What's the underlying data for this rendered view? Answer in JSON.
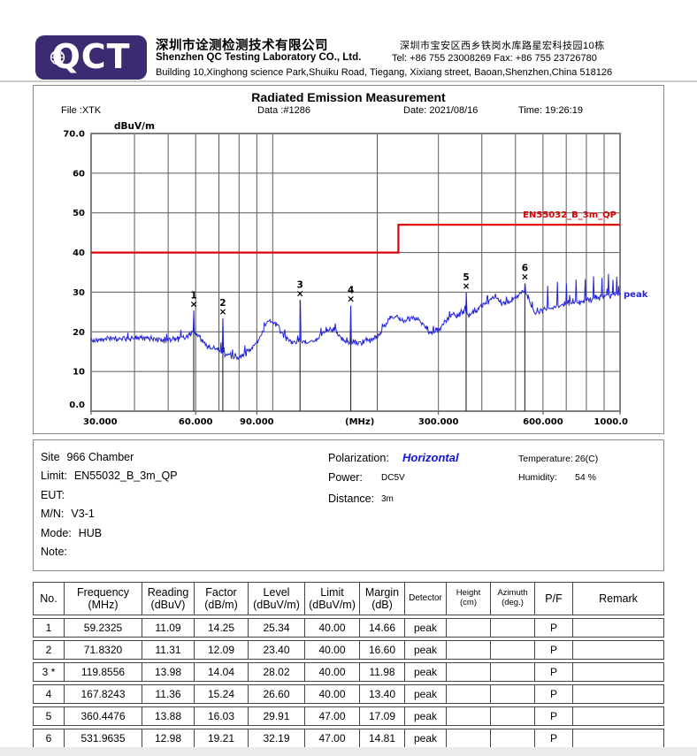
{
  "header": {
    "logo_text": "QCT",
    "company_cn": "深圳市诠测检测技术有限公司",
    "company_en": "Shenzhen QC Testing Laboratory CO., Ltd.",
    "address_cn": "深圳市宝安区西乡铁岗水库路星宏科技园10栋",
    "tel_fax": "Tel: +86 755 23008269   Fax: +86 755 23726780",
    "address_en": "Building 10,Xinghong science Park,Shuiku Road, Tiegang, Xixiang street, Baoan,Shenzhen,China 518126"
  },
  "chart": {
    "title": "Radiated Emission Measurement",
    "file": "File :XTK",
    "data": "Data :#1286",
    "date": "Date: 2021/08/16",
    "time": "Time: 19:26:19",
    "y_unit": "dBuV/m"
  },
  "chart_data": {
    "type": "line",
    "x_scale": "log",
    "x_range": [
      30,
      1000
    ],
    "y_range": [
      0,
      70
    ],
    "grid": {
      "freqs": [
        40,
        50,
        60,
        70,
        80,
        90,
        100,
        200,
        300,
        400,
        500,
        600,
        700,
        800,
        900
      ],
      "levels": [
        10,
        20,
        30,
        40,
        50,
        60
      ]
    },
    "y_ticks": [
      {
        "v": 70,
        "label": "70.0"
      },
      {
        "v": 60,
        "label": "60"
      },
      {
        "v": 50,
        "label": "50"
      },
      {
        "v": 40,
        "label": "40"
      },
      {
        "v": 30,
        "label": "30"
      },
      {
        "v": 20,
        "label": "20"
      },
      {
        "v": 10,
        "label": "10"
      },
      {
        "v": 0,
        "label": "0.0"
      }
    ],
    "x_ticks": [
      {
        "f": 30,
        "label": "30.000",
        "align": "start"
      },
      {
        "f": 60,
        "label": "60.000"
      },
      {
        "f": 90,
        "label": "90.000"
      },
      {
        "f": 178,
        "label": "(MHz)",
        "unit": true
      },
      {
        "f": 300,
        "label": "300.000"
      },
      {
        "f": 600,
        "label": "600.000"
      },
      {
        "f": 1000,
        "label": "1000.0",
        "align": "end"
      }
    ],
    "limit_line": {
      "label": "EN55032_B_3m_QP",
      "color": "#e00000",
      "points": [
        [
          30,
          40
        ],
        [
          230,
          40
        ],
        [
          230,
          47
        ],
        [
          1000,
          47
        ]
      ]
    },
    "trace": {
      "name": "peak",
      "color": "#2424d8",
      "end_level": 29.4,
      "noise_db": 0.95,
      "envelope": [
        [
          30,
          18
        ],
        [
          36,
          18.4
        ],
        [
          42,
          18.3
        ],
        [
          48,
          17.9
        ],
        [
          53,
          18.1
        ],
        [
          56,
          18.8
        ],
        [
          59,
          19.8
        ],
        [
          61,
          19.2
        ],
        [
          64,
          16.8
        ],
        [
          67,
          15.8
        ],
        [
          70,
          15.2
        ],
        [
          73,
          14.4
        ],
        [
          77,
          13.8
        ],
        [
          80,
          13.6
        ],
        [
          83,
          14.3
        ],
        [
          86,
          15.3
        ],
        [
          89,
          16.8
        ],
        [
          92,
          18.6
        ],
        [
          95,
          21.5
        ],
        [
          98,
          23
        ],
        [
          101,
          22.4
        ],
        [
          104,
          21.2
        ],
        [
          108,
          18.8
        ],
        [
          112,
          17.7
        ],
        [
          116,
          17.5
        ],
        [
          120,
          17.7
        ],
        [
          125,
          17.4
        ],
        [
          130,
          17.6
        ],
        [
          136,
          18.4
        ],
        [
          141,
          19.8
        ],
        [
          146,
          20.6
        ],
        [
          151,
          20.2
        ],
        [
          156,
          18.8
        ],
        [
          161,
          17.8
        ],
        [
          167,
          17.5
        ],
        [
          173,
          17.4
        ],
        [
          180,
          17.5
        ],
        [
          188,
          17.8
        ],
        [
          196,
          18.2
        ],
        [
          203,
          19.5
        ],
        [
          210,
          21.5
        ],
        [
          217,
          23.3
        ],
        [
          224,
          23.8
        ],
        [
          230,
          23.4
        ],
        [
          238,
          22.6
        ],
        [
          246,
          23.2
        ],
        [
          254,
          23.4
        ],
        [
          262,
          22.8
        ],
        [
          271,
          21.6
        ],
        [
          280,
          20
        ],
        [
          290,
          19.5
        ],
        [
          300,
          20.2
        ],
        [
          311,
          22
        ],
        [
          322,
          23.6
        ],
        [
          333,
          24.2
        ],
        [
          345,
          24.6
        ],
        [
          356,
          25.2
        ],
        [
          365,
          24.2
        ],
        [
          375,
          24.6
        ],
        [
          386,
          25.6
        ],
        [
          398,
          26.6
        ],
        [
          410,
          27.2
        ],
        [
          424,
          28.2
        ],
        [
          437,
          28.6
        ],
        [
          450,
          27.6
        ],
        [
          464,
          27.1
        ],
        [
          478,
          27.6
        ],
        [
          493,
          28.2
        ],
        [
          508,
          29.3
        ],
        [
          520,
          30.3
        ],
        [
          530,
          30
        ],
        [
          541,
          29.4
        ],
        [
          552,
          26.8
        ],
        [
          565,
          25
        ],
        [
          578,
          24.8
        ],
        [
          592,
          25.1
        ],
        [
          610,
          25.6
        ],
        [
          630,
          26
        ],
        [
          655,
          26.4
        ],
        [
          680,
          26.7
        ],
        [
          710,
          27
        ],
        [
          740,
          27.3
        ],
        [
          775,
          27.6
        ],
        [
          810,
          27.9
        ],
        [
          850,
          28.3
        ],
        [
          890,
          28.6
        ],
        [
          930,
          29
        ],
        [
          965,
          29.2
        ],
        [
          1000,
          29.4
        ]
      ],
      "spikes": [
        [
          59.2325,
          25.34
        ],
        [
          71.832,
          23.4
        ],
        [
          119.8556,
          28.02
        ],
        [
          167.8243,
          26.6
        ],
        [
          360.4476,
          29.91
        ],
        [
          531.9635,
          32.19
        ],
        [
          438,
          29.6
        ],
        [
          620,
          31.6
        ],
        [
          660,
          32.6
        ],
        [
          702,
          32.2
        ],
        [
          747,
          33.2
        ],
        [
          794,
          33.3
        ],
        [
          840,
          34.0
        ],
        [
          886,
          33.6
        ],
        [
          924,
          34.6
        ],
        [
          952,
          33.1
        ],
        [
          980,
          33.9
        ]
      ]
    },
    "markers": [
      {
        "n": "1",
        "freq": 59.2325,
        "level": 25.34
      },
      {
        "n": "2",
        "freq": 71.832,
        "level": 23.4
      },
      {
        "n": "3",
        "freq": 119.8556,
        "level": 28.02
      },
      {
        "n": "4",
        "freq": 167.8243,
        "level": 26.6
      },
      {
        "n": "5",
        "freq": 360.4476,
        "level": 29.91
      },
      {
        "n": "6",
        "freq": 531.9635,
        "level": 32.19
      }
    ]
  },
  "info": {
    "site_label": "Site",
    "site": "966 Chamber",
    "limit_label": "Limit:",
    "limit": "EN55032_B_3m_QP",
    "eut_label": "EUT:",
    "eut": "",
    "mn_label": "M/N:",
    "mn": "V3-1",
    "mode_label": "Mode:",
    "mode": "HUB",
    "note_label": "Note:",
    "note": "",
    "polarization_label": "Polarization:",
    "polarization": "Horizontal",
    "power_label": "Power:",
    "power": "DC5V",
    "distance_label": "Distance:",
    "distance": "3m",
    "temperature_label": "Temperature:",
    "temperature": "26(C)",
    "humidity_label": "Humidity:",
    "humidity": "54 %"
  },
  "table": {
    "headers": [
      [
        "No.",
        ""
      ],
      [
        "Frequency",
        "(MHz)"
      ],
      [
        "Reading",
        "(dBuV)"
      ],
      [
        "Factor",
        "(dB/m)"
      ],
      [
        "Level",
        "(dBuV/m)"
      ],
      [
        "Limit",
        "(dBuV/m)"
      ],
      [
        "Margin",
        "(dB)"
      ],
      [
        "Detector",
        ""
      ],
      [
        "Height",
        "(cm)"
      ],
      [
        "Azimuth",
        "(deg.)"
      ],
      [
        "P/F",
        ""
      ],
      [
        "Remark",
        ""
      ]
    ],
    "rows": [
      [
        "1",
        "59.2325",
        "11.09",
        "14.25",
        "25.34",
        "40.00",
        "14.66",
        "peak",
        "",
        "",
        "P",
        ""
      ],
      [
        "2",
        "71.8320",
        "11.31",
        "12.09",
        "23.40",
        "40.00",
        "16.60",
        "peak",
        "",
        "",
        "P",
        ""
      ],
      [
        "3 *",
        "119.8556",
        "13.98",
        "14.04",
        "28.02",
        "40.00",
        "11.98",
        "peak",
        "",
        "",
        "P",
        ""
      ],
      [
        "4",
        "167.8243",
        "11.36",
        "15.24",
        "26.60",
        "40.00",
        "13.40",
        "peak",
        "",
        "",
        "P",
        ""
      ],
      [
        "5",
        "360.4476",
        "13.88",
        "16.03",
        "29.91",
        "47.00",
        "17.09",
        "peak",
        "",
        "",
        "P",
        ""
      ],
      [
        "6",
        "531.9635",
        "12.98",
        "19.21",
        "32.19",
        "47.00",
        "14.81",
        "peak",
        "",
        "",
        "P",
        ""
      ]
    ]
  },
  "colors": {
    "logo_bg": "#3c2a72",
    "limit_red": "#e00000",
    "trace_blue": "#2424d8",
    "horizontal_blue": "#1212e0"
  }
}
